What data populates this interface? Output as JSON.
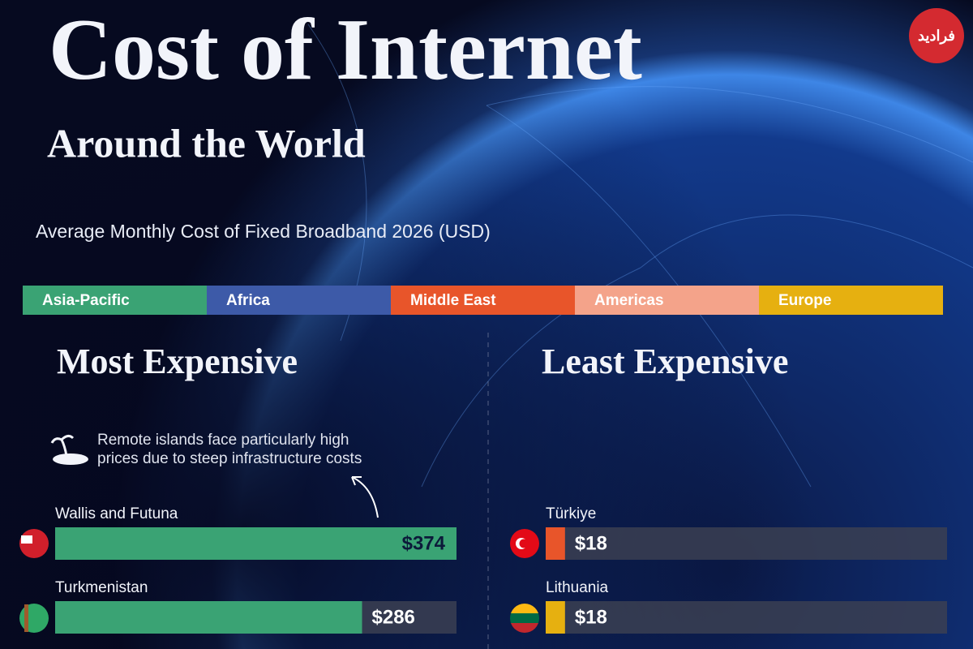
{
  "header": {
    "title": "Cost of Internet",
    "subtitle": "Around the World",
    "description": "Average Monthly Cost of Fixed Broadband 2026 (USD)",
    "logo": "فرادید"
  },
  "legend": [
    {
      "name": "Asia-Pacific",
      "color": "#3aa374"
    },
    {
      "name": "Africa",
      "color": "#3d5aa8"
    },
    {
      "name": "Middle East",
      "color": "#e8552a"
    },
    {
      "name": "Americas",
      "color": "#f4a38a"
    },
    {
      "name": "Europe",
      "color": "#e6b010"
    }
  ],
  "chart_data": [
    {
      "type": "hbar",
      "title": "Most Expensive",
      "annotation": [
        "Remote islands face particularly high",
        "prices due to steep infrastructure costs"
      ],
      "categories": [
        "Wallis and Futuna",
        "Turkmenistan"
      ],
      "values": [
        374,
        286
      ],
      "value_labels": [
        "$374",
        "$286"
      ],
      "colors": [
        "#3aa374",
        "#3aa374"
      ],
      "xlim": [
        0,
        374
      ]
    },
    {
      "type": "hbar",
      "title": "Least Expensive",
      "categories": [
        "Türkiye",
        "Lithuania"
      ],
      "values": [
        18,
        18
      ],
      "value_labels": [
        "$18",
        "$18"
      ],
      "colors": [
        "#e8552a",
        "#e6b010"
      ],
      "xlim": [
        0,
        374
      ]
    }
  ]
}
